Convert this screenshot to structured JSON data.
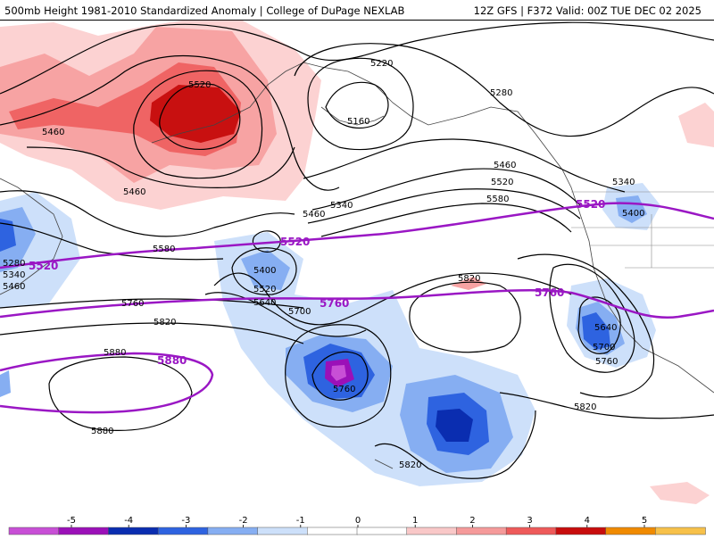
{
  "header": {
    "title": "500mb Height 1981-2010 Standardized Anomaly | College of DuPage NEXLAB",
    "run_info": "12Z GFS | F372 Valid: 00Z TUE DEC 02 2025"
  },
  "map": {
    "height_labels": [
      "5520",
      "5460",
      "5460",
      "5220",
      "5160",
      "5280",
      "5460",
      "5520",
      "5580",
      "5340",
      "5400",
      "5340",
      "5460",
      "5580",
      "5400",
      "5520",
      "5640",
      "5700",
      "5280",
      "5340",
      "5460",
      "5760",
      "5820",
      "5880",
      "5820",
      "5640",
      "5700",
      "5760",
      "5760",
      "5820",
      "5820",
      "5880"
    ],
    "purple_labels": [
      "5520",
      "5520",
      "5520",
      "5760",
      "5760",
      "5880"
    ]
  },
  "colorbar": {
    "ticks": [
      "-5",
      "-4",
      "-3",
      "-2",
      "-1",
      "0",
      "1",
      "2",
      "3",
      "4",
      "5"
    ],
    "colors": [
      "#c84fd6",
      "#9b10b8",
      "#0a2db0",
      "#2e63e0",
      "#86aef2",
      "#cde0fa",
      "#ffffff",
      "#ffffff",
      "#f9c8c8",
      "#f59a9a",
      "#ee5a5a",
      "#c80d0d",
      "#f08a00",
      "#f7c14a"
    ]
  },
  "colors": {
    "contour": "#000000",
    "purple_contour": "#9a17c4",
    "coast": "#444444"
  }
}
